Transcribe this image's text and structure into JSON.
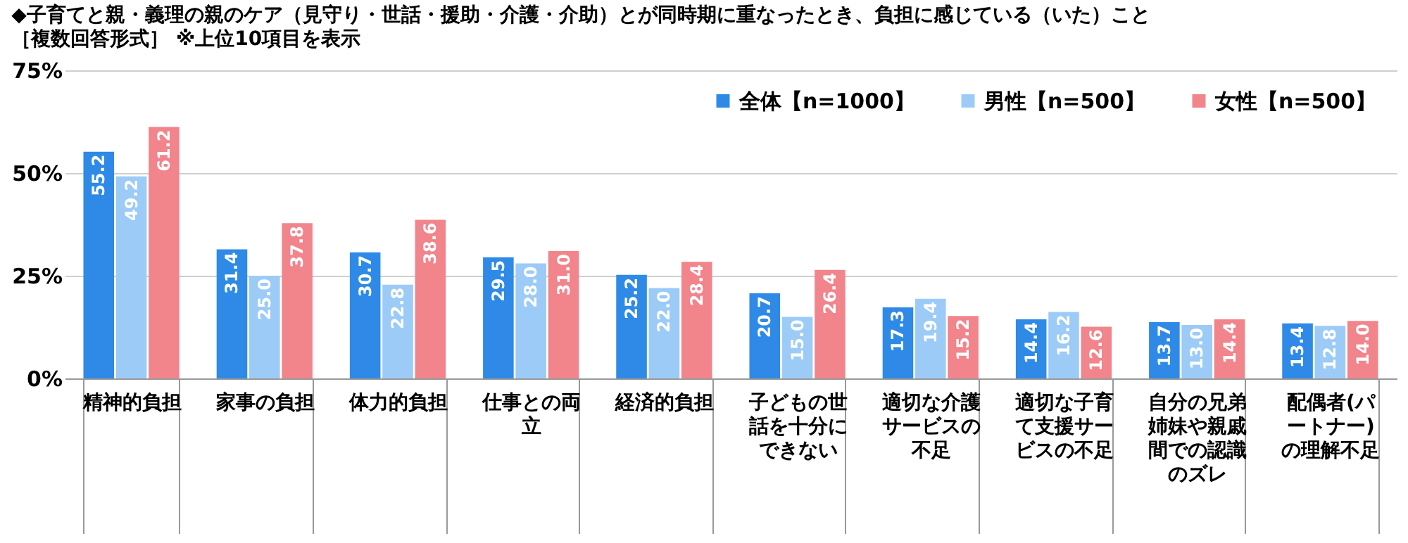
{
  "chart_data": {
    "type": "bar",
    "title": "◆子育てと親・義理の親のケア（見守り・世話・援助・介護・介助）とが同時期に重なったとき、負担に感じている（いた）こと",
    "subtitle": "［複数回答形式］ ※上位10項目を表示",
    "categories": [
      "精神的負担",
      "家事の負担",
      "体力的負担",
      "仕事との両立",
      "経済的負担",
      "子どもの世話を十分にできない",
      "適切な介護サービスの不足",
      "適切な子育て支援サービスの不足",
      "自分の兄弟姉妹や親戚間での認識のズレ",
      "配偶者(パートナー)の理解不足"
    ],
    "series": [
      {
        "name": "全体【n=1000】",
        "color": "#2e8ae6",
        "values": [
          55.2,
          31.4,
          30.7,
          29.5,
          25.2,
          20.7,
          17.3,
          14.4,
          13.7,
          13.4
        ],
        "value_labels": [
          "55.2",
          "31.4",
          "30.7",
          "29.5",
          "25.2",
          "20.7",
          "17.3",
          "14.4",
          "13.7",
          "13.4"
        ]
      },
      {
        "name": "男性【n=500】",
        "color": "#9ccbf7",
        "values": [
          49.2,
          25.0,
          22.8,
          28.0,
          22.0,
          15.0,
          19.4,
          16.2,
          13.0,
          12.8
        ],
        "value_labels": [
          "49.2",
          "25.0",
          "22.8",
          "28.0",
          "22.0",
          "15.0",
          "19.4",
          "16.2",
          "13.0",
          "12.8"
        ]
      },
      {
        "name": "女性【n=500】",
        "color": "#f2848c",
        "values": [
          61.2,
          37.8,
          38.6,
          31.0,
          28.4,
          26.4,
          15.2,
          12.6,
          14.4,
          14.0
        ],
        "value_labels": [
          "61.2",
          "37.8",
          "38.6",
          "31.0",
          "28.4",
          "26.4",
          "15.2",
          "12.6",
          "14.4",
          "14.0"
        ]
      }
    ],
    "ylim": [
      0,
      75
    ],
    "yticks": [
      {
        "value": 0,
        "label": "0%"
      },
      {
        "value": 25,
        "label": "25%"
      },
      {
        "value": 50,
        "label": "50%"
      },
      {
        "value": 75,
        "label": "75%"
      }
    ],
    "grid": "y",
    "legend": "top right"
  }
}
